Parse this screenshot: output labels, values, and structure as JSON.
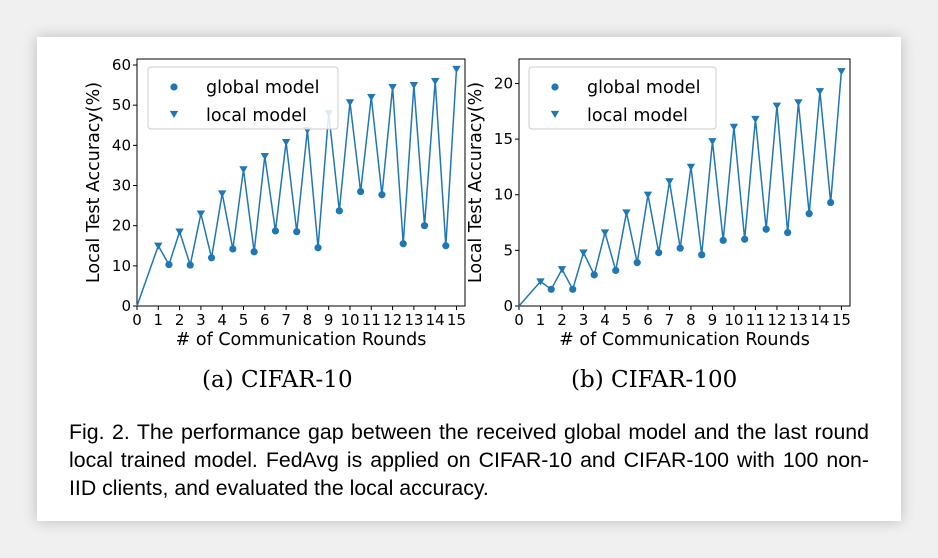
{
  "chart_data": [
    {
      "type": "line",
      "x": [
        0,
        1,
        1.5,
        2,
        2.5,
        3,
        3.5,
        4,
        4.5,
        5,
        5.5,
        6,
        6.5,
        7,
        7.5,
        8,
        8.5,
        9,
        9.5,
        10,
        10.5,
        11,
        11.5,
        12,
        12.5,
        13,
        13.5,
        14,
        14.5,
        15
      ],
      "y": [
        0,
        15,
        10.3,
        18.5,
        10.2,
        23,
        12,
        28,
        14.2,
        34,
        13.5,
        37.3,
        18.7,
        40.8,
        18.5,
        43.8,
        14.5,
        48,
        23.7,
        50.7,
        28.5,
        52,
        27.7,
        54.5,
        15.5,
        55,
        20,
        56,
        15,
        59
      ],
      "series": [
        {
          "name": "global model",
          "marker": "circle",
          "x": [
            1.5,
            2.5,
            3.5,
            4.5,
            5.5,
            6.5,
            7.5,
            8.5,
            9.5,
            10.5,
            11.5,
            12.5,
            13.5,
            14.5
          ],
          "values": [
            10.3,
            10.2,
            12,
            14.2,
            13.5,
            18.7,
            18.5,
            14.5,
            23.7,
            28.5,
            27.7,
            15.5,
            20,
            15
          ]
        },
        {
          "name": "local model",
          "marker": "triangle-down",
          "x": [
            1,
            2,
            3,
            4,
            5,
            6,
            7,
            8,
            9,
            10,
            11,
            12,
            13,
            14,
            15
          ],
          "values": [
            15,
            18.5,
            23,
            28,
            34,
            37.3,
            40.8,
            43.8,
            48,
            50.7,
            52,
            54.5,
            55,
            56,
            59
          ]
        }
      ],
      "xlabel": "# of Communication Rounds",
      "ylabel": "Local Test Accuracy(%)",
      "xlim": [
        0,
        15.4
      ],
      "ylim": [
        0,
        61.5
      ],
      "xticks": [
        0,
        1,
        2,
        3,
        4,
        5,
        6,
        7,
        8,
        9,
        10,
        11,
        12,
        13,
        14,
        15
      ],
      "yticks": [
        0,
        10,
        20,
        30,
        40,
        50,
        60
      ],
      "grid": false,
      "legend_position": "top-left",
      "color": "#1f77b4"
    },
    {
      "type": "line",
      "x": [
        0,
        1,
        1.5,
        2,
        2.5,
        3,
        3.5,
        4,
        4.5,
        5,
        5.5,
        6,
        6.5,
        7,
        7.5,
        8,
        8.5,
        9,
        9.5,
        10,
        10.5,
        11,
        11.5,
        12,
        12.5,
        13,
        13.5,
        14,
        14.5,
        15
      ],
      "y": [
        0,
        2.2,
        1.5,
        3.3,
        1.5,
        4.8,
        2.8,
        6.6,
        3.2,
        8.4,
        3.9,
        10,
        4.8,
        11.2,
        5.2,
        12.5,
        4.6,
        14.8,
        5.9,
        16.1,
        6,
        16.8,
        6.9,
        18,
        6.6,
        18.3,
        8.3,
        19.3,
        9.3,
        21.1
      ],
      "series": [
        {
          "name": "global model",
          "marker": "circle",
          "x": [
            1.5,
            2.5,
            3.5,
            4.5,
            5.5,
            6.5,
            7.5,
            8.5,
            9.5,
            10.5,
            11.5,
            12.5,
            13.5,
            14.5
          ],
          "values": [
            1.5,
            1.5,
            2.8,
            3.2,
            3.9,
            4.8,
            5.2,
            4.6,
            5.9,
            6,
            6.9,
            6.6,
            8.3,
            9.3
          ]
        },
        {
          "name": "local model",
          "marker": "triangle-down",
          "x": [
            1,
            2,
            3,
            4,
            5,
            6,
            7,
            8,
            9,
            10,
            11,
            12,
            13,
            14,
            15
          ],
          "values": [
            2.2,
            3.3,
            4.8,
            6.6,
            8.4,
            10,
            11.2,
            12.5,
            14.8,
            16.1,
            16.8,
            18,
            18.3,
            19.3,
            21.1
          ]
        }
      ],
      "xlabel": "# of Communication Rounds",
      "ylabel": "Local Test Accuracy(%)",
      "xlim": [
        0,
        15.4
      ],
      "ylim": [
        0,
        22.2
      ],
      "xticks": [
        0,
        1,
        2,
        3,
        4,
        5,
        6,
        7,
        8,
        9,
        10,
        11,
        12,
        13,
        14,
        15
      ],
      "yticks": [
        0,
        5,
        10,
        15,
        20
      ],
      "grid": false,
      "legend_position": "top-left",
      "color": "#1f77b4"
    }
  ],
  "subcaptions": [
    "(a)  CIFAR-10",
    "(b)  CIFAR-100"
  ],
  "caption": "Fig. 2. The performance gap between the received global model and the last round local trained model. FedAvg is applied on CIFAR-10 and CIFAR-100 with 100 non-IID clients, and evaluated the local accuracy."
}
